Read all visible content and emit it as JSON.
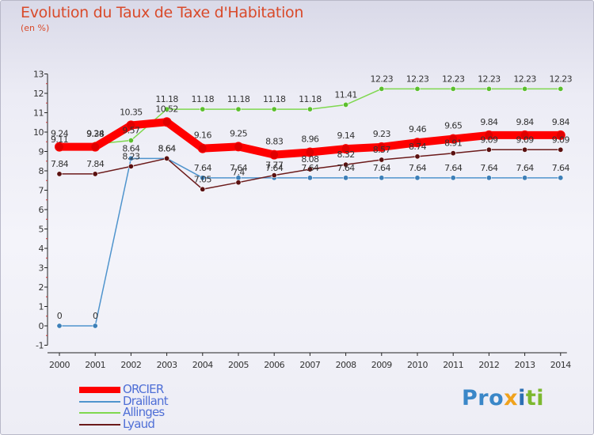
{
  "chart_data": {
    "type": "line",
    "title": "Evolution du Taux de Taxe d'Habitation",
    "subtitle": "(en %)",
    "xlabel": "",
    "ylabel": "(en %)",
    "x": [
      "2000",
      "2001",
      "2002",
      "2003",
      "2004",
      "2005",
      "2006",
      "2007",
      "2008",
      "2009",
      "2010",
      "2011",
      "2012",
      "2013",
      "2014"
    ],
    "ylim": [
      -1,
      13
    ],
    "yticks": [
      -1,
      0,
      1,
      2,
      3,
      4,
      5,
      6,
      7,
      8,
      9,
      10,
      11,
      12,
      13
    ],
    "grid": false,
    "legend_position": "bottom-left",
    "series": [
      {
        "name": "ORCIER",
        "color": "#ff0000",
        "values": [
          9.24,
          9.24,
          10.35,
          10.52,
          9.16,
          9.25,
          8.83,
          8.96,
          9.14,
          9.23,
          9.46,
          9.65,
          9.84,
          9.84,
          9.84
        ],
        "labels": [
          "9.24",
          "9.24",
          "10.35",
          "10.52",
          "9.16",
          "9.25",
          "8.83",
          "8.96",
          "9.14",
          "9.23",
          "9.46",
          "9.65",
          "9.84",
          "9.84",
          "9.84"
        ]
      },
      {
        "name": "Draillant",
        "color": "#4f94cd",
        "values": [
          0,
          0,
          8.64,
          8.64,
          7.64,
          7.64,
          7.64,
          7.64,
          7.64,
          7.64,
          7.64,
          7.64,
          7.64,
          7.64,
          7.64
        ],
        "labels": [
          "0",
          "0",
          "8.64",
          "8.64",
          "7.64",
          "7.64",
          "7.64",
          "7.64",
          "7.64",
          "7.64",
          "7.64",
          "7.64",
          "7.64",
          "7.64",
          "7.64"
        ]
      },
      {
        "name": "Allinges",
        "color": "#7fd84f",
        "values": [
          9.11,
          9.38,
          9.57,
          11.18,
          11.18,
          11.18,
          11.18,
          11.18,
          11.41,
          12.23,
          12.23,
          12.23,
          12.23,
          12.23,
          12.23
        ],
        "labels": [
          "9.11",
          "9.38",
          "9.57",
          "11.18",
          "11.18",
          "11.18",
          "11.18",
          "11.18",
          "11.41",
          "12.23",
          "12.23",
          "12.23",
          "12.23",
          "12.23",
          "12.23"
        ]
      },
      {
        "name": "Lyaud",
        "color": "#6b1a1a",
        "values": [
          7.84,
          7.84,
          8.23,
          8.64,
          7.05,
          7.4,
          7.77,
          8.08,
          8.32,
          8.57,
          8.74,
          8.91,
          9.09,
          9.09,
          9.09
        ],
        "labels": [
          "7.84",
          "7.84",
          "8.23",
          "8.64",
          "7.05",
          "7.4",
          "7.77",
          "8.08",
          "8.32",
          "8.57",
          "8.74",
          "8.91",
          "9.09",
          "9.09",
          "9.09"
        ]
      }
    ]
  },
  "brand": {
    "parts": [
      "Pro",
      "x",
      "i",
      "ti"
    ]
  }
}
